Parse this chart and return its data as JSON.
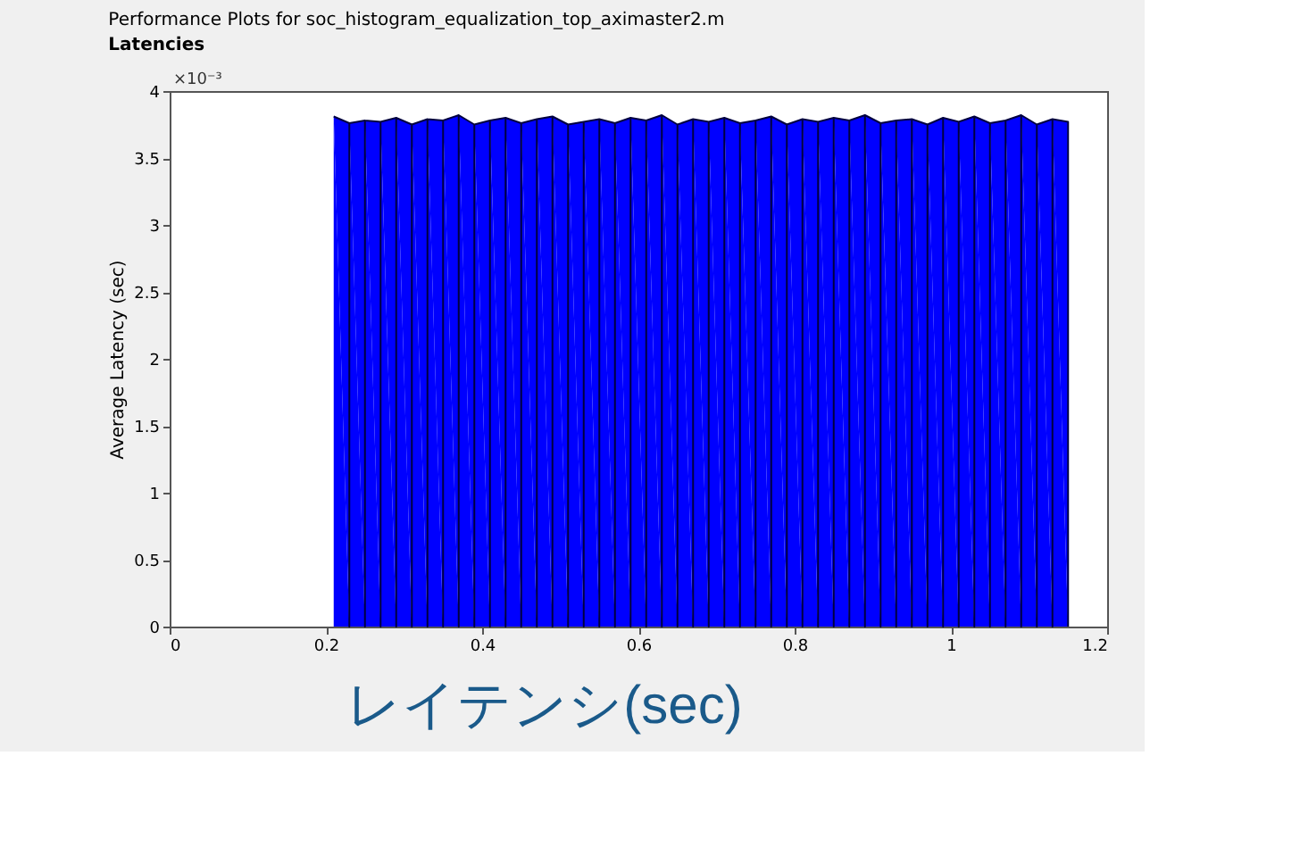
{
  "chart_data": {
    "type": "area",
    "title": "Performance Plots for soc_histogram_equalization_top_aximaster2.m",
    "subtitle": "Latencies",
    "ylabel": "Average Latency (sec)",
    "annotations": [
      "×10⁻³",
      "レイテンシ(sec)"
    ],
    "x": [
      0.21,
      0.23,
      0.25,
      0.27,
      0.29,
      0.31,
      0.33,
      0.35,
      0.37,
      0.39,
      0.41,
      0.43,
      0.45,
      0.47,
      0.49,
      0.51,
      0.53,
      0.55,
      0.57,
      0.59,
      0.61,
      0.63,
      0.65,
      0.67,
      0.69,
      0.71,
      0.73,
      0.75,
      0.77,
      0.79,
      0.81,
      0.83,
      0.85,
      0.87,
      0.89,
      0.91,
      0.93,
      0.95,
      0.97,
      0.99,
      1.01,
      1.03,
      1.05,
      1.07,
      1.09,
      1.11,
      1.13,
      1.15
    ],
    "series": [
      {
        "color": "#0000ff",
        "values": [
          3.81,
          3.76,
          3.78,
          3.77,
          3.8,
          3.75,
          3.79,
          3.78,
          3.82,
          3.75,
          3.78,
          3.8,
          3.76,
          3.79,
          3.81,
          3.75,
          3.77,
          3.79,
          3.76,
          3.8,
          3.78,
          3.82,
          3.75,
          3.79,
          3.77,
          3.8,
          3.76,
          3.78,
          3.81,
          3.75,
          3.79,
          3.77,
          3.8,
          3.78,
          3.82,
          3.76,
          3.78,
          3.79,
          3.75,
          3.8,
          3.77,
          3.81,
          3.76,
          3.78,
          3.82,
          3.75,
          3.79,
          3.77
        ]
      }
    ],
    "xlim": [
      0,
      1.2
    ],
    "xticks": [
      0,
      0.2,
      0.4,
      0.6,
      0.8,
      1,
      1.2
    ],
    "ylim": [
      0,
      4
    ],
    "yticks": [
      0,
      0.5,
      1,
      1.5,
      2,
      2.5,
      3,
      3.5,
      4
    ],
    "grid": false
  }
}
